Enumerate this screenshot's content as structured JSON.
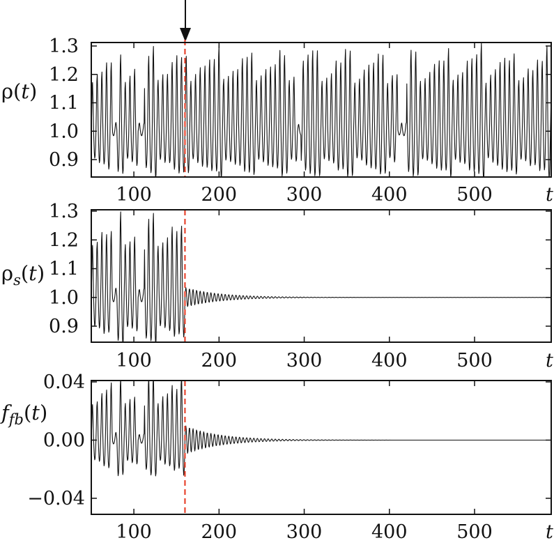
{
  "chart_data": [
    {
      "type": "line",
      "ylabel": {
        "main": "ρ(",
        "italic": "t",
        "sub": "",
        "close": ")"
      },
      "xlabel": "t",
      "xlim": [
        50,
        590
      ],
      "ylim": [
        0.85,
        1.3
      ],
      "xticks": [
        100,
        200,
        300,
        400,
        500
      ],
      "yticks": [
        0.9,
        1.0,
        1.1,
        1.2,
        1.3
      ],
      "ytick_labels": [
        "0.9",
        "1.0",
        "1.1",
        "1.2",
        "1.3"
      ],
      "control_on_at": 160,
      "series": [
        {
          "x_start": 50,
          "x_end": 590,
          "baseline": 1.0,
          "amp_min": 0.12,
          "amp_max": 0.29,
          "period": 5.5,
          "quiet_intervals": [
            [
              75,
              80
            ],
            [
              105,
              112
            ],
            [
              292,
              296
            ],
            [
              410,
              420
            ]
          ],
          "decay_after": null
        }
      ]
    },
    {
      "type": "line",
      "ylabel": {
        "main": "ρ",
        "italic": "",
        "sub": "s",
        "close": "(t)"
      },
      "xlabel": "t",
      "xlim": [
        50,
        590
      ],
      "ylim": [
        0.85,
        1.3
      ],
      "xticks": [
        100,
        200,
        300,
        400,
        500
      ],
      "yticks": [
        0.9,
        1.0,
        1.1,
        1.2,
        1.3
      ],
      "ytick_labels": [
        "0.9",
        "1.0",
        "1.1",
        "1.2",
        "1.3"
      ],
      "control_on_at": 160,
      "series": [
        {
          "x_start": 50,
          "x_end": 590,
          "baseline": 1.0,
          "amp_min": 0.12,
          "amp_max": 0.29,
          "period": 5.5,
          "quiet_intervals": [
            [
              75,
              80
            ],
            [
              105,
              112
            ]
          ],
          "decay_after": {
            "t0": 160,
            "initial_amp": 0.035,
            "tau": 40
          }
        }
      ]
    },
    {
      "type": "line",
      "ylabel": {
        "main": "",
        "italic": "f",
        "sub": "fb",
        "close": "(t)"
      },
      "xlabel": "t",
      "xlim": [
        50,
        590
      ],
      "ylim": [
        -0.05,
        0.04
      ],
      "xticks": [
        100,
        200,
        300,
        400,
        500
      ],
      "yticks": [
        -0.04,
        0.0,
        0.04
      ],
      "ytick_labels": [
        "−0.04",
        "0.00",
        "0.04"
      ],
      "control_on_at": 160,
      "series": [
        {
          "x_start": 50,
          "x_end": 590,
          "baseline": 0.0,
          "amp_min": 0.015,
          "amp_max": 0.045,
          "period": 5.5,
          "quiet_intervals": [
            [
              75,
              80
            ],
            [
              105,
              112
            ]
          ],
          "decay_after": {
            "t0": 160,
            "initial_amp": 0.01,
            "tau": 40
          }
        }
      ]
    }
  ]
}
